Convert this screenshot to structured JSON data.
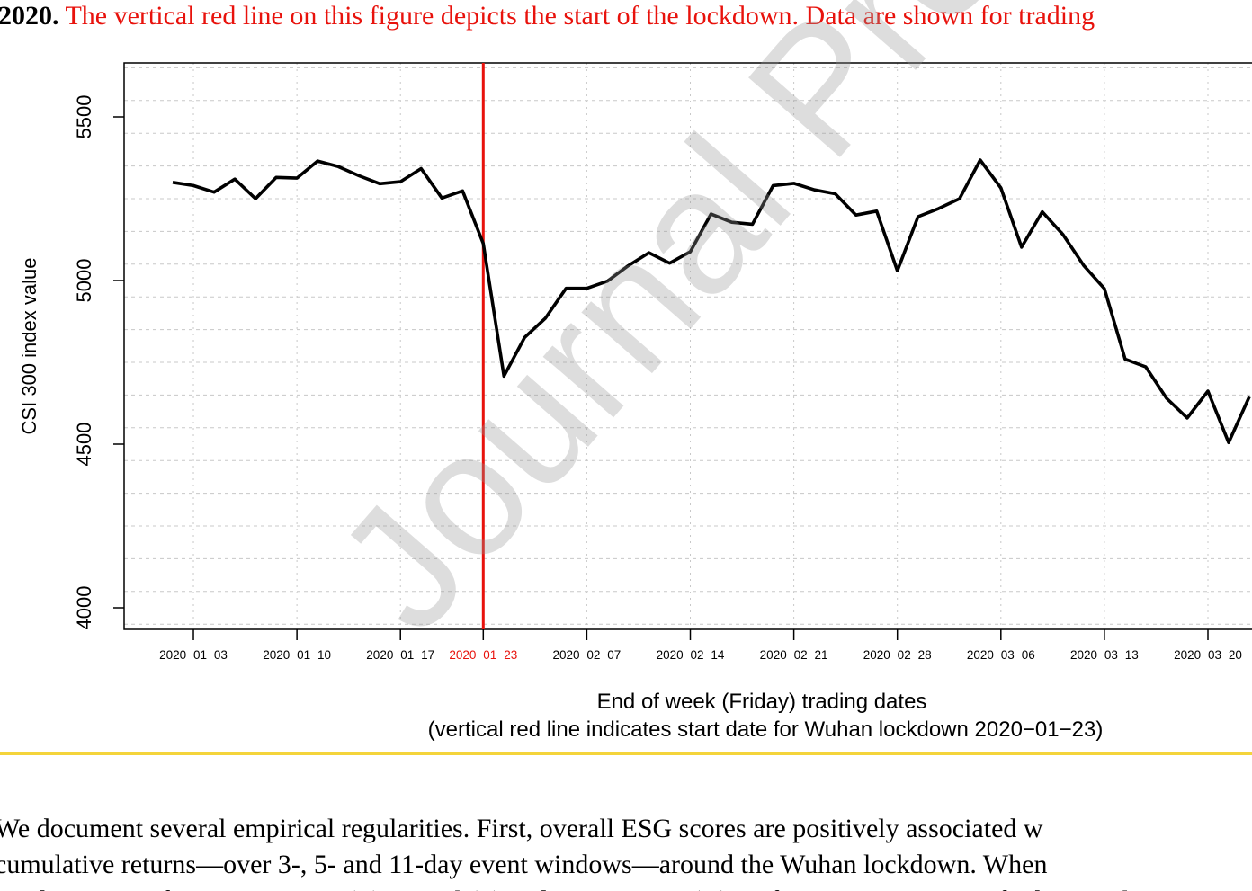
{
  "caption": {
    "lead": "2020.",
    "rest": "The vertical red line on this figure depicts the start of the lockdown. Data are shown for trading"
  },
  "chart_data": {
    "type": "line",
    "ylabel": "CSI 300 index value",
    "xlabel": "End of week (Friday) trading dates",
    "xlabel2": "(vertical red line indicates start date for Wuhan lockdown 2020−01−23)",
    "yticks": [
      4000,
      4500,
      5000,
      5500
    ],
    "ylim": [
      3950,
      5650
    ],
    "grid": true,
    "xtick_labels": [
      "2020−01−03",
      "2020−01−10",
      "2020−01−17",
      "2020−01−23",
      "2020−02−07",
      "2020−02−14",
      "2020−02−21",
      "2020−02−28",
      "2020−03−06",
      "2020−03−13",
      "2020−03−20"
    ],
    "highlight_tick": 3,
    "highlight_color": "#e8120c",
    "lockdown_line_at": "2020−01−23",
    "series": [
      {
        "color": "#000000",
        "values": [
          5300,
          5290,
          5270,
          5310,
          5250,
          5315,
          5313,
          5365,
          5348,
          5320,
          5296,
          5302,
          5342,
          5252,
          5274,
          5113,
          4708,
          4826,
          4885,
          4976,
          4976,
          4998,
          5045,
          5085,
          5053,
          5088,
          5203,
          5178,
          5172,
          5290,
          5297,
          5277,
          5265,
          5200,
          5212,
          5030,
          5195,
          5220,
          5250,
          5368,
          5283,
          5102,
          5210,
          5140,
          5046,
          4975,
          4760,
          4736,
          4640,
          4580,
          4662,
          4505,
          4645
        ]
      }
    ]
  },
  "watermark": "Journal Pre-proof",
  "body_text": {
    "line1": "We document several empirical regularities.  First, overall ESG scores are positively associated w",
    "line2": "cumulative returns—over 3-, 5- and 11-day event windows—around the Wuhan lockdown.  When",
    "line3": "we decompose for Environment (E), Social (S) and Governance (G) performance scores, we find a correlation"
  }
}
